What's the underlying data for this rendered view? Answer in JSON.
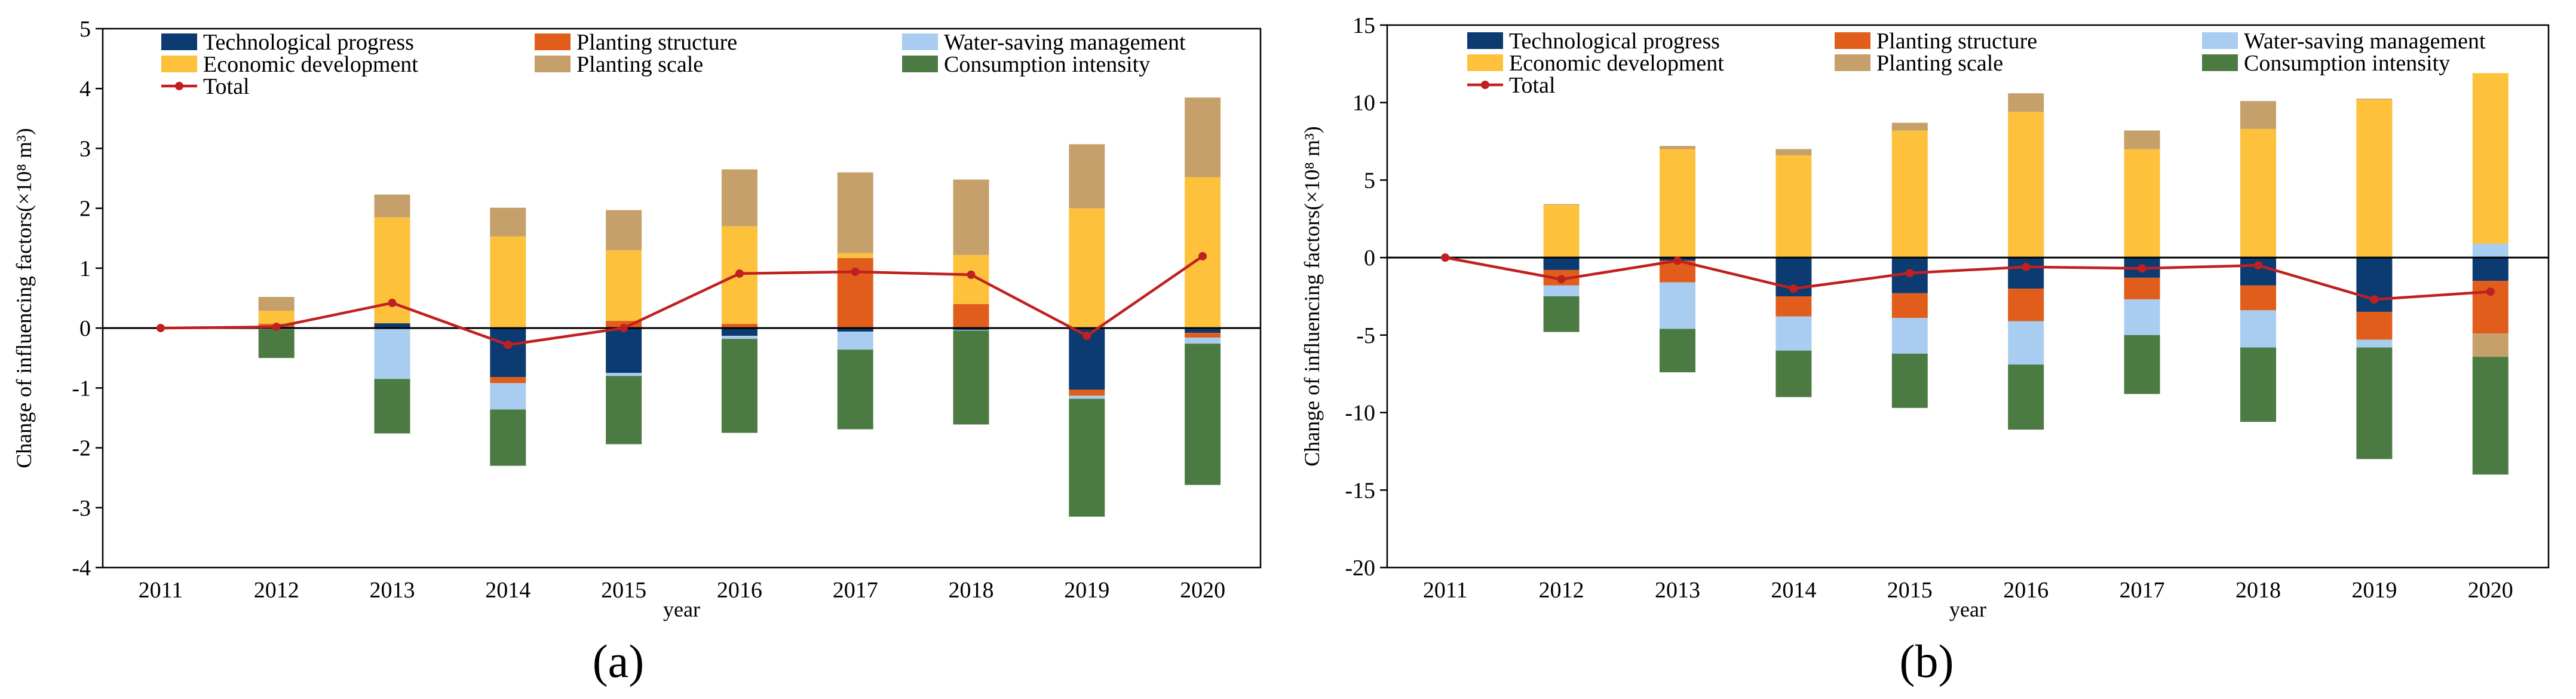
{
  "colors": {
    "technological": "#0b3b70",
    "structure": "#e15d1c",
    "water": "#a9cdf0",
    "economic": "#fec13c",
    "scale": "#c6a06a",
    "consumption": "#4c7a43",
    "total": "#c0201f"
  },
  "captions": {
    "a": "(a)",
    "b": "(b)"
  },
  "chart_data": [
    {
      "type": "bar",
      "stacked": true,
      "panel": "a",
      "ylabel": "Change of influencing factors(×10⁸ m³)",
      "xlabel": "year",
      "categories": [
        "2011",
        "2012",
        "2013",
        "2014",
        "2015",
        "2016",
        "2017",
        "2018",
        "2019",
        "2020"
      ],
      "ylim": [
        -4,
        5
      ],
      "yticks": [
        -4,
        -3,
        -2,
        -1,
        0,
        1,
        2,
        3,
        4,
        5
      ],
      "legend": [
        "Technological progress",
        "Planting structure",
        "Water-saving management",
        "Economic development",
        "Planting scale",
        "Consumption intensity",
        "Total"
      ],
      "series": [
        {
          "name": "Technological progress",
          "key": "technological",
          "values": [
            0,
            0.02,
            0.08,
            -0.82,
            -0.75,
            -0.13,
            -0.06,
            -0.03,
            -1.03,
            -0.08
          ]
        },
        {
          "name": "Planting structure",
          "key": "structure",
          "values": [
            0,
            0.05,
            0,
            -0.1,
            0.12,
            0.07,
            1.17,
            0.4,
            -0.1,
            -0.08
          ]
        },
        {
          "name": "Water-saving management",
          "key": "water",
          "values": [
            0,
            -0.02,
            -0.85,
            -0.44,
            -0.05,
            -0.05,
            -0.3,
            -0.01,
            -0.05,
            -0.1
          ]
        },
        {
          "name": "Economic development",
          "key": "economic",
          "values": [
            0,
            0.22,
            1.77,
            1.53,
            1.18,
            1.63,
            0.08,
            0.82,
            2.0,
            2.52
          ]
        },
        {
          "name": "Planting scale",
          "key": "scale",
          "values": [
            0,
            0.23,
            0.38,
            0.48,
            0.67,
            0.95,
            1.35,
            1.26,
            1.07,
            1.33
          ]
        },
        {
          "name": "Consumption intensity",
          "key": "consumption",
          "values": [
            0,
            -0.48,
            -0.91,
            -0.94,
            -1.14,
            -1.57,
            -1.33,
            -1.57,
            -1.97,
            -2.36
          ]
        }
      ],
      "total": {
        "name": "Total",
        "values": [
          0,
          0.02,
          0.42,
          -0.28,
          0,
          0.91,
          0.94,
          0.89,
          -0.13,
          1.2
        ]
      }
    },
    {
      "type": "bar",
      "stacked": true,
      "panel": "b",
      "ylabel": "Change of influencing factors(×10⁸ m³)",
      "xlabel": "year",
      "categories": [
        "2011",
        "2012",
        "2013",
        "2014",
        "2015",
        "2016",
        "2017",
        "2018",
        "2019",
        "2020"
      ],
      "ylim": [
        -20,
        15
      ],
      "yticks": [
        -20,
        -15,
        -10,
        -5,
        0,
        5,
        10,
        15
      ],
      "legend": [
        "Technological progress",
        "Planting structure",
        "Water-saving management",
        "Economic development",
        "Planting scale",
        "Consumption intensity",
        "Total"
      ],
      "series": [
        {
          "name": "Technological progress",
          "key": "technological",
          "values": [
            0,
            -0.8,
            -0.2,
            -2.5,
            -2.3,
            -2.0,
            -1.3,
            -1.8,
            -3.5,
            -1.5
          ]
        },
        {
          "name": "Planting structure",
          "key": "structure",
          "values": [
            0,
            -1.0,
            -1.4,
            -1.3,
            -1.6,
            -2.1,
            -1.4,
            -1.6,
            -1.8,
            -3.4
          ]
        },
        {
          "name": "Water-saving management",
          "key": "water",
          "values": [
            0,
            -0.7,
            -3.0,
            -2.2,
            -2.3,
            -2.8,
            -2.3,
            -2.4,
            -0.5,
            0.9
          ]
        },
        {
          "name": "Economic development",
          "key": "economic",
          "values": [
            0,
            3.4,
            7.0,
            6.6,
            8.2,
            9.4,
            7.0,
            8.3,
            10.2,
            11.0
          ]
        },
        {
          "name": "Planting scale",
          "key": "scale",
          "values": [
            0,
            0.05,
            0.2,
            0.4,
            0.5,
            1.2,
            1.2,
            1.8,
            0.05,
            -1.5
          ]
        },
        {
          "name": "Consumption intensity",
          "key": "consumption",
          "values": [
            0,
            -2.3,
            -2.8,
            -3.0,
            -3.5,
            -4.2,
            -3.8,
            -4.8,
            -7.2,
            -7.6
          ]
        }
      ],
      "total": {
        "name": "Total",
        "values": [
          0,
          -1.4,
          -0.2,
          -2.0,
          -1.0,
          -0.6,
          -0.7,
          -0.5,
          -2.7,
          -2.2
        ]
      }
    }
  ]
}
